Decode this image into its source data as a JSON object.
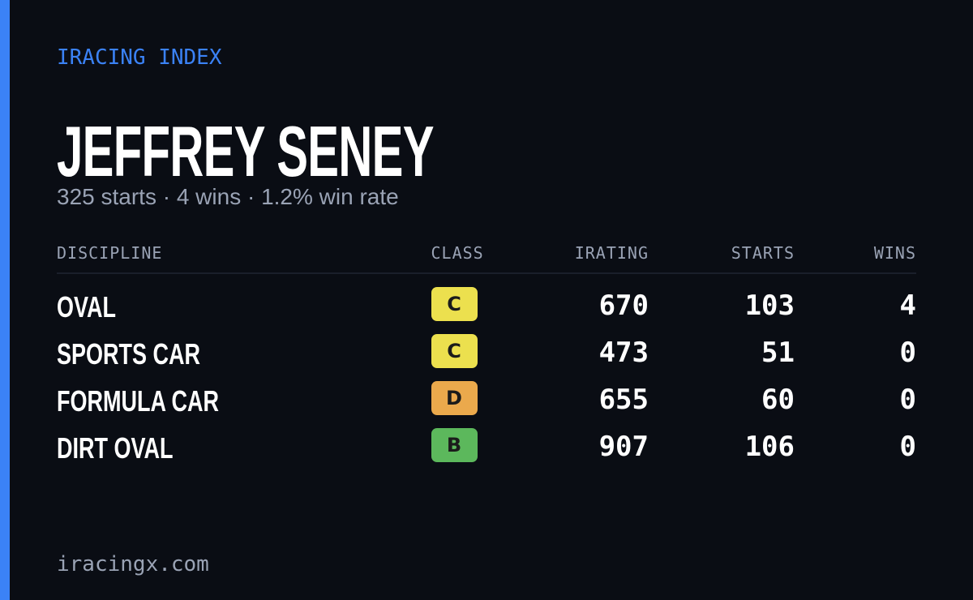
{
  "header": {
    "eyebrow": "IRACING INDEX",
    "name": "JEFFREY SENEY",
    "summary": "325 starts · 4 wins · 1.2% win rate"
  },
  "table": {
    "columns": [
      "DISCIPLINE",
      "CLASS",
      "IRATING",
      "STARTS",
      "WINS"
    ],
    "rows": [
      [
        "OVAL",
        "C",
        670,
        103,
        4
      ],
      [
        "SPORTS CAR",
        "C",
        473,
        51,
        0
      ],
      [
        "FORMULA CAR",
        "D",
        655,
        60,
        0
      ],
      [
        "DIRT OVAL",
        "B",
        907,
        106,
        0
      ]
    ]
  },
  "footer": {
    "site": "iracingx.com"
  }
}
